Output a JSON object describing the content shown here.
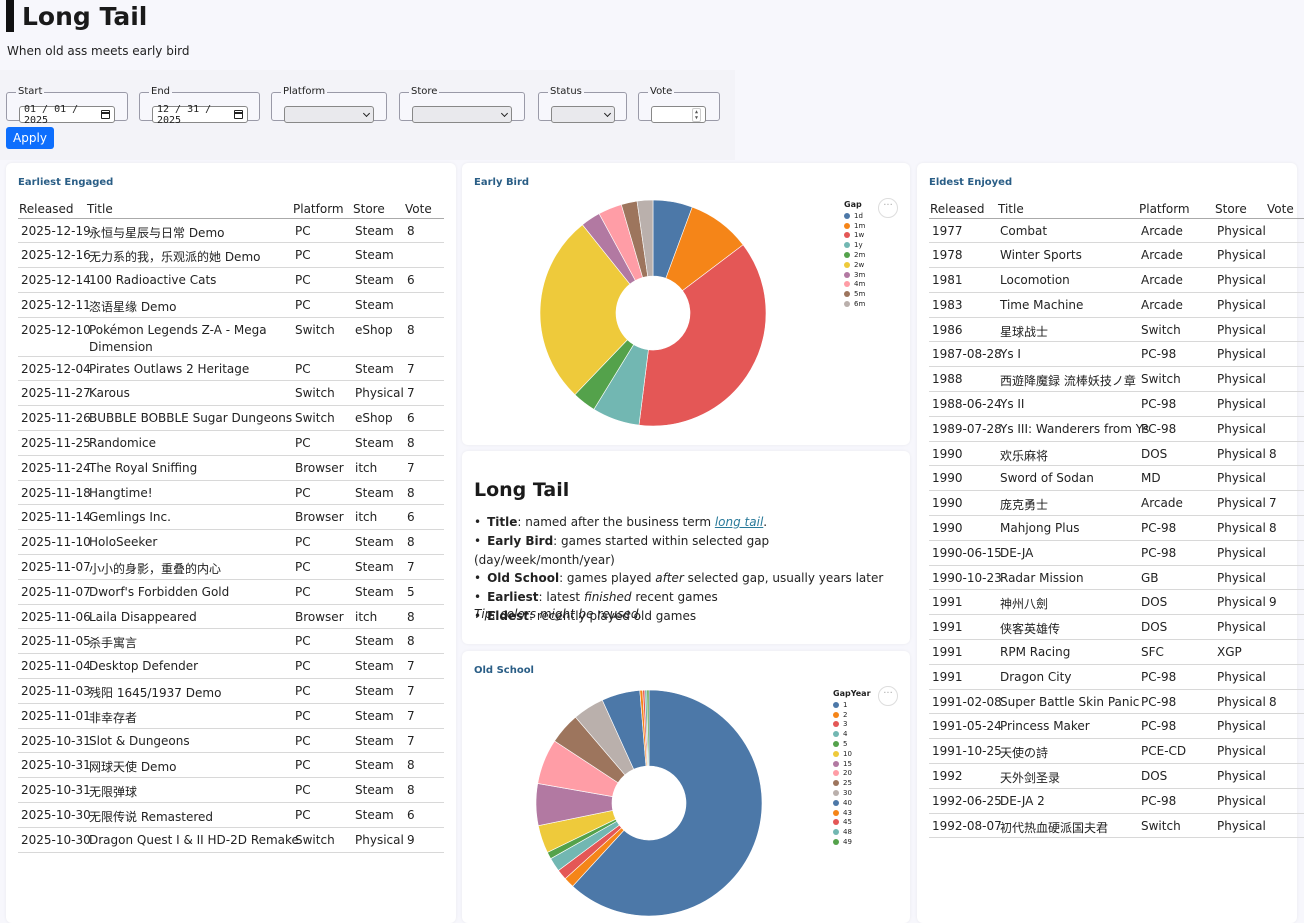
{
  "header": {
    "title": "Long Tail",
    "subtitle": "When old ass meets early bird"
  },
  "filters": {
    "start_label": "Start",
    "start_value": "01 / 01 / 2025",
    "end_label": "End",
    "end_value": "12 / 31 / 2025",
    "platform_label": "Platform",
    "store_label": "Store",
    "status_label": "Status",
    "vote_label": "Vote",
    "apply_label": "Apply"
  },
  "earliest": {
    "title": "Earliest Engaged",
    "columns": [
      "Released",
      "Title",
      "Platform",
      "Store",
      "Vote"
    ],
    "rows": [
      [
        "2025-12-19",
        "永恒与星辰与日常 Demo",
        "PC",
        "Steam",
        "8"
      ],
      [
        "2025-12-16",
        "无力系的我，乐观派的她 Demo",
        "PC",
        "Steam",
        ""
      ],
      [
        "2025-12-14",
        "100 Radioactive Cats",
        "PC",
        "Steam",
        "6"
      ],
      [
        "2025-12-11",
        "恣语星缘 Demo",
        "PC",
        "Steam",
        ""
      ],
      [
        "2025-12-10",
        "Pokémon Legends Z-A - Mega Dimension",
        "Switch",
        "eShop",
        "8"
      ],
      [
        "2025-12-04",
        "Pirates Outlaws 2 Heritage",
        "PC",
        "Steam",
        "7"
      ],
      [
        "2025-11-27",
        "Karous",
        "Switch",
        "Physical",
        "7"
      ],
      [
        "2025-11-26",
        "BUBBLE BOBBLE Sugar Dungeons",
        "Switch",
        "eShop",
        "6"
      ],
      [
        "2025-11-25",
        "Randomice",
        "PC",
        "Steam",
        "8"
      ],
      [
        "2025-11-24",
        "The Royal Sniffing",
        "Browser",
        "itch",
        "7"
      ],
      [
        "2025-11-18",
        "Hangtime!",
        "PC",
        "Steam",
        "8"
      ],
      [
        "2025-11-14",
        "Gemlings Inc.",
        "Browser",
        "itch",
        "6"
      ],
      [
        "2025-11-10",
        "HoloSeeker",
        "PC",
        "Steam",
        "8"
      ],
      [
        "2025-11-07",
        "小小的身影，重叠的内心",
        "PC",
        "Steam",
        "7"
      ],
      [
        "2025-11-07",
        "Dworf's Forbidden Gold",
        "PC",
        "Steam",
        "5"
      ],
      [
        "2025-11-06",
        "Laila Disappeared",
        "Browser",
        "itch",
        "8"
      ],
      [
        "2025-11-05",
        "杀手寓言",
        "PC",
        "Steam",
        "8"
      ],
      [
        "2025-11-04",
        "Desktop Defender",
        "PC",
        "Steam",
        "7"
      ],
      [
        "2025-11-03",
        "残阳 1645/1937 Demo",
        "PC",
        "Steam",
        "7"
      ],
      [
        "2025-11-01",
        "非幸存者",
        "PC",
        "Steam",
        "7"
      ],
      [
        "2025-10-31",
        "Slot & Dungeons",
        "PC",
        "Steam",
        "7"
      ],
      [
        "2025-10-31",
        "网球天使 Demo",
        "PC",
        "Steam",
        "8"
      ],
      [
        "2025-10-31",
        "无限弹球",
        "PC",
        "Steam",
        "8"
      ],
      [
        "2025-10-30",
        "无限传说 Remastered",
        "PC",
        "Steam",
        "6"
      ],
      [
        "2025-10-30",
        "Dragon Quest I & II HD-2D Remake",
        "Switch",
        "Physical",
        "9"
      ]
    ]
  },
  "eldest": {
    "title": "Eldest Enjoyed",
    "columns": [
      "Released",
      "Title",
      "Platform",
      "Store",
      "Vote"
    ],
    "rows": [
      [
        "1977",
        "Combat",
        "Arcade",
        "Physical",
        ""
      ],
      [
        "1978",
        "Winter Sports",
        "Arcade",
        "Physical",
        ""
      ],
      [
        "1981",
        "Locomotion",
        "Arcade",
        "Physical",
        ""
      ],
      [
        "1983",
        "Time Machine",
        "Arcade",
        "Physical",
        ""
      ],
      [
        "1986",
        "星球战士",
        "Switch",
        "Physical",
        ""
      ],
      [
        "1987-08-28",
        "Ys I",
        "PC-98",
        "Physical",
        ""
      ],
      [
        "1988",
        "西遊降魔録 流棒妖技ノ章",
        "Switch",
        "Physical",
        ""
      ],
      [
        "1988-06-24",
        "Ys II",
        "PC-98",
        "Physical",
        ""
      ],
      [
        "1989-07-28",
        "Ys III: Wanderers from Ys",
        "PC-98",
        "Physical",
        ""
      ],
      [
        "1990",
        "欢乐麻将",
        "DOS",
        "Physical",
        "8"
      ],
      [
        "1990",
        "Sword of Sodan",
        "MD",
        "Physical",
        ""
      ],
      [
        "1990",
        "庞克勇士",
        "Arcade",
        "Physical",
        "7"
      ],
      [
        "1990",
        "Mahjong Plus",
        "PC-98",
        "Physical",
        "8"
      ],
      [
        "1990-06-15",
        "DE-JA",
        "PC-98",
        "Physical",
        ""
      ],
      [
        "1990-10-23",
        "Radar Mission",
        "GB",
        "Physical",
        ""
      ],
      [
        "1991",
        "神州八劍",
        "DOS",
        "Physical",
        "9"
      ],
      [
        "1991",
        "侠客英雄传",
        "DOS",
        "Physical",
        ""
      ],
      [
        "1991",
        "RPM Racing",
        "SFC",
        "XGP",
        ""
      ],
      [
        "1991",
        "Dragon City",
        "PC-98",
        "Physical",
        ""
      ],
      [
        "1991-02-08",
        "Super Battle Skin Panic",
        "PC-98",
        "Physical",
        "8"
      ],
      [
        "1991-05-24",
        "Princess Maker",
        "PC-98",
        "Physical",
        ""
      ],
      [
        "1991-10-25",
        "天使の詩",
        "PCE-CD",
        "Physical",
        ""
      ],
      [
        "1992",
        "天外剑圣录",
        "DOS",
        "Physical",
        ""
      ],
      [
        "1992-06-25",
        "DE-JA 2",
        "PC-98",
        "Physical",
        ""
      ],
      [
        "1992-08-07",
        "初代热血硬派国夫君",
        "Switch",
        "Physical",
        ""
      ]
    ]
  },
  "early_bird": {
    "title": "Early Bird",
    "legend_title": "Gap",
    "more_label": "···",
    "slices": [
      {
        "label": "1d",
        "value": 5,
        "color": "#4c78a8"
      },
      {
        "label": "1m",
        "value": 8,
        "color": "#f58518"
      },
      {
        "label": "1w",
        "value": 33,
        "color": "#e45756"
      },
      {
        "label": "1y",
        "value": 6,
        "color": "#72b7b2"
      },
      {
        "label": "2m",
        "value": 3,
        "color": "#54a24b"
      },
      {
        "label": "2w",
        "value": 24,
        "color": "#eeca3b"
      },
      {
        "label": "3m",
        "value": 2.5,
        "color": "#b279a2"
      },
      {
        "label": "4m",
        "value": 3,
        "color": "#ff9da6"
      },
      {
        "label": "5m",
        "value": 2,
        "color": "#9d755d"
      },
      {
        "label": "6m",
        "value": 2,
        "color": "#bab0ac"
      }
    ],
    "order": [
      "1d",
      "1m",
      "1w",
      "1y",
      "2m",
      "2w",
      "3m",
      "4m",
      "5m",
      "6m"
    ]
  },
  "info": {
    "heading": "Long Tail",
    "items": [
      {
        "key": "Title",
        "pre": ": named after the business term ",
        "link": "long tail",
        "post": "."
      },
      {
        "key": "Early Bird",
        "pre": ": games started within selected gap (day/week/month/year)",
        "link": "",
        "post": ""
      },
      {
        "key": "Old School",
        "pre": ": games played ",
        "em": "after",
        "post": " selected gap, usually years later"
      },
      {
        "key": "Earliest",
        "pre": ": latest ",
        "em": "finished",
        "post": " recent games"
      },
      {
        "key": "Eldest",
        "pre": ": recently played old games",
        "link": "",
        "post": ""
      }
    ],
    "tip": "Tip: colors might be reused."
  },
  "old_school": {
    "title": "Old School",
    "legend_title": "GapYear",
    "more_label": "···",
    "slices": [
      {
        "label": "1",
        "value": 62,
        "color": "#4c78a8"
      },
      {
        "label": "2",
        "value": 1.5,
        "color": "#f58518"
      },
      {
        "label": "3",
        "value": 1.5,
        "color": "#e45756"
      },
      {
        "label": "4",
        "value": 2,
        "color": "#72b7b2"
      },
      {
        "label": "5",
        "value": 1,
        "color": "#54a24b"
      },
      {
        "label": "10",
        "value": 4,
        "color": "#eeca3b"
      },
      {
        "label": "15",
        "value": 6,
        "color": "#b279a2"
      },
      {
        "label": "20",
        "value": 6.5,
        "color": "#ff9da6"
      },
      {
        "label": "25",
        "value": 4.5,
        "color": "#9d755d"
      },
      {
        "label": "30",
        "value": 4.5,
        "color": "#bab0ac"
      },
      {
        "label": "40",
        "value": 5.5,
        "color": "#4c78a8"
      },
      {
        "label": "43",
        "value": 0.4,
        "color": "#f58518"
      },
      {
        "label": "45",
        "value": 0.3,
        "color": "#e45756"
      },
      {
        "label": "48",
        "value": 0.3,
        "color": "#72b7b2"
      },
      {
        "label": "49",
        "value": 0.3,
        "color": "#54a24b"
      }
    ]
  }
}
